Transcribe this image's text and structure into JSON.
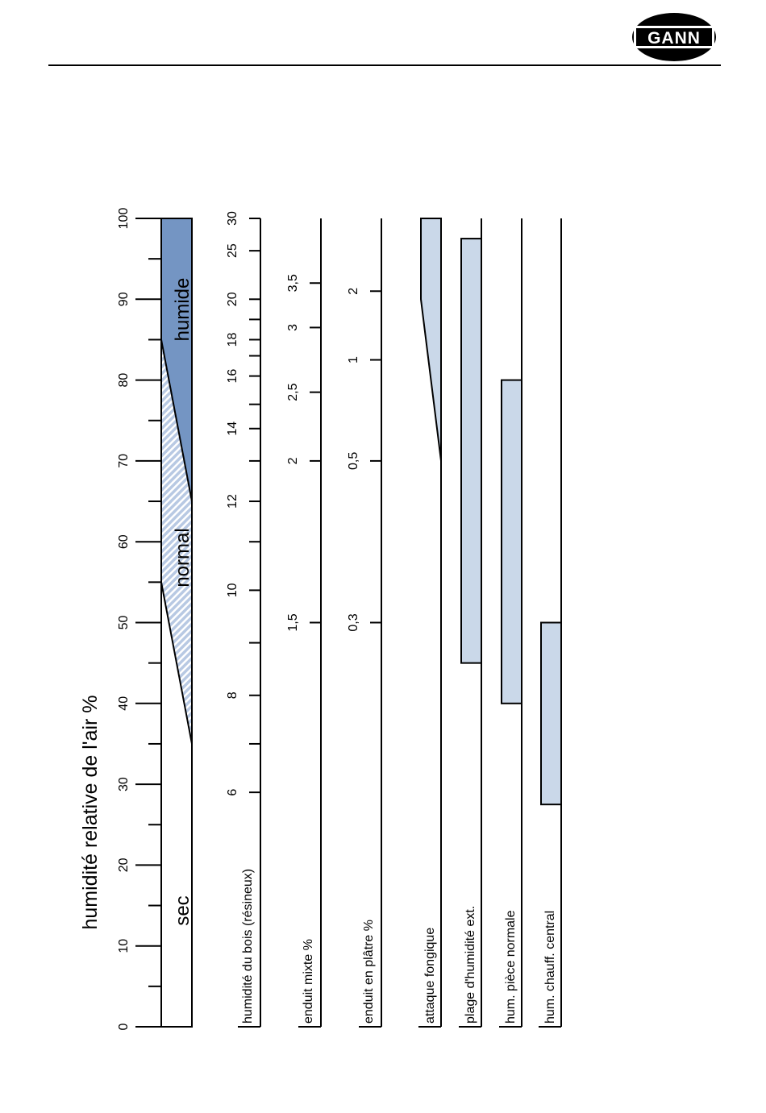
{
  "logo": {
    "text": "GANN"
  },
  "colors": {
    "humide": "#7495c3",
    "normal_hatch": "#b8c9e3",
    "range_fill": "#cad8e9",
    "line": "#000000"
  },
  "axis_title": "humidité relative de l'air %",
  "zones": {
    "sec": "sec",
    "normal": "normal",
    "humide": "humide"
  },
  "chart_data": {
    "type": "nomogram",
    "rh_axis": {
      "label": "humidité relative de l'air %",
      "min": 0,
      "max": 100,
      "major_ticks": [
        0,
        10,
        20,
        30,
        40,
        50,
        60,
        70,
        80,
        90,
        100
      ],
      "minor_ticks": [
        5,
        15,
        25,
        35,
        45,
        55,
        65,
        75,
        85,
        95
      ]
    },
    "zones": {
      "sec_normal_boundary": {
        "from_rh": 55,
        "to_rh": 35
      },
      "normal_humide_boundary": {
        "from_rh": 85,
        "to_rh": 65
      }
    },
    "scales": [
      {
        "label": "humidité du bois (résineux)",
        "labels": [
          {
            "text": "6",
            "rh": 29
          },
          {
            "text": "8",
            "rh": 41
          },
          {
            "text": "10",
            "rh": 54
          },
          {
            "text": "12",
            "rh": 65
          },
          {
            "text": "14",
            "rh": 74
          },
          {
            "text": "16",
            "rh": 80.5
          },
          {
            "text": "18",
            "rh": 85
          },
          {
            "text": "20",
            "rh": 90
          },
          {
            "text": "25",
            "rh": 96
          },
          {
            "text": "30",
            "rh": 100
          }
        ],
        "ticks": [
          29,
          35,
          41,
          47.5,
          54,
          60,
          65,
          70,
          74,
          77,
          80.5,
          83,
          85,
          87.5,
          90,
          96,
          100
        ]
      },
      {
        "label": "enduit mixte %",
        "labels": [
          {
            "text": "1,5",
            "rh": 50
          },
          {
            "text": "2",
            "rh": 70
          },
          {
            "text": "2,5",
            "rh": 78.5
          },
          {
            "text": "3",
            "rh": 86.5
          },
          {
            "text": "3,5",
            "rh": 92
          }
        ],
        "ticks": [
          50,
          70,
          78.5,
          86.5,
          92
        ]
      },
      {
        "label": "enduit en plâtre %",
        "labels": [
          {
            "text": "0,3",
            "rh": 50
          },
          {
            "text": "0,5",
            "rh": 70
          },
          {
            "text": "1",
            "rh": 82.5
          },
          {
            "text": "2",
            "rh": 91
          }
        ],
        "ticks": [
          50,
          70,
          82.5,
          91
        ]
      }
    ],
    "ranges": [
      {
        "label": "attaque fongique",
        "from": 70,
        "to": 100,
        "shape": "wedge",
        "full_width_from": 90
      },
      {
        "label": "plage d'humidité ext.",
        "from": 45,
        "to": 97.5
      },
      {
        "label": "hum. pièce normale",
        "from": 40,
        "to": 80
      },
      {
        "label": "hum. chauff. central",
        "from": 27.5,
        "to": 50
      }
    ]
  }
}
